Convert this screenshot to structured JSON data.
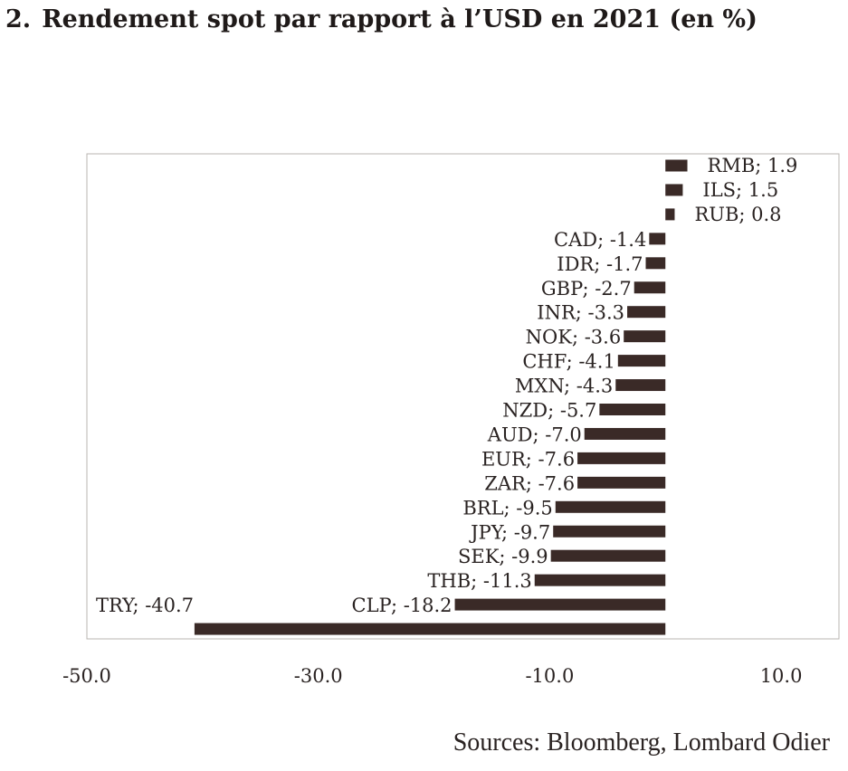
{
  "title": {
    "number": "2.",
    "text": "Rendement spot par rapport à l’USD en 2021 (en %)"
  },
  "source": "Sources: Bloomberg, Lombard Odier",
  "colors": {
    "bar": "#3a2a27",
    "frame": "#b9b4b0",
    "text": "#2a2322"
  },
  "chart_data": {
    "type": "bar",
    "orientation": "horizontal",
    "categories": [
      "RMB",
      "ILS",
      "RUB",
      "CAD",
      "IDR",
      "GBP",
      "INR",
      "NOK",
      "CHF",
      "MXN",
      "NZD",
      "AUD",
      "EUR",
      "ZAR",
      "BRL",
      "JPY",
      "SEK",
      "THB",
      "CLP",
      "TRY"
    ],
    "values": [
      1.9,
      1.5,
      0.8,
      -1.4,
      -1.7,
      -2.7,
      -3.3,
      -3.6,
      -4.1,
      -4.3,
      -5.7,
      -7.0,
      -7.6,
      -7.6,
      -9.5,
      -9.7,
      -9.9,
      -11.3,
      -18.2,
      -40.7
    ],
    "data_labels": [
      "RMB; 1.9",
      "ILS; 1.5",
      "RUB; 0.8",
      "CAD; -1.4",
      "IDR; -1.7",
      "GBP; -2.7",
      "INR; -3.3",
      "NOK; -3.6",
      "CHF; -4.1",
      "MXN; -4.3",
      "NZD; -5.7",
      "AUD; -7.0",
      "EUR; -7.6",
      "ZAR; -7.6",
      "BRL; -9.5",
      "JPY; -9.7",
      "SEK; -9.9",
      "THB; -11.3",
      "CLP; -18.2",
      "TRY; -40.7"
    ],
    "x_ticks": [
      -50,
      -30,
      -10,
      10
    ],
    "x_tick_labels": [
      "-50.0",
      "-30.0",
      "-10.0",
      "10.0"
    ],
    "xlim": [
      -50,
      15
    ],
    "grid": false,
    "legend": "none"
  }
}
